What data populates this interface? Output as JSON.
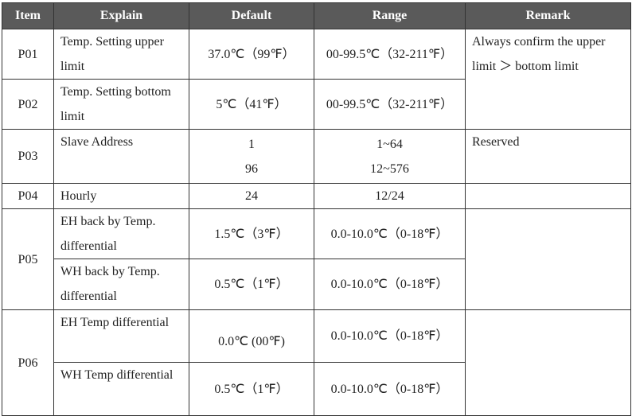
{
  "table": {
    "header": [
      "Item",
      "Explain",
      "Default",
      "Range",
      "Remark"
    ],
    "rows": [
      {
        "item": "P01",
        "explain": "Temp. Setting upper limit",
        "default": "37.0℃（99℉）",
        "range": "00-99.5℃（32-211℉）",
        "remark": "Always confirm the upper limit ＞ bottom limit"
      },
      {
        "item": "P02",
        "explain": "Temp. Setting bottom limit",
        "default": "5℃（41℉）",
        "range": "00-99.5℃（32-211℉）"
      },
      {
        "item": "P03",
        "explain": "Slave Address",
        "default": [
          "1",
          "96"
        ],
        "range": [
          "1~64",
          "12~576"
        ],
        "remark": "Reserved"
      },
      {
        "item": "P04",
        "explain": "Hourly",
        "default": "24",
        "range": "12/24"
      },
      {
        "item": "P05",
        "entries": [
          {
            "explain": "EH back by Temp. differential",
            "default": "1.5℃（3℉）",
            "range": "0.0-10.0℃（0-18℉）"
          },
          {
            "explain": "WH back by Temp. differential",
            "default": "0.5℃（1℉）",
            "range": "0.0-10.0℃（0-18℉）"
          }
        ]
      },
      {
        "item": "P06",
        "entries": [
          {
            "explain": "EH Temp differential",
            "default": "0.0℃ (00℉)",
            "range": "0.0-10.0℃（0-18℉）"
          },
          {
            "explain": "WH Temp differential",
            "default": "0.5℃（1℉）",
            "range": "0.0-10.0℃（0-18℉）"
          }
        ]
      }
    ]
  }
}
